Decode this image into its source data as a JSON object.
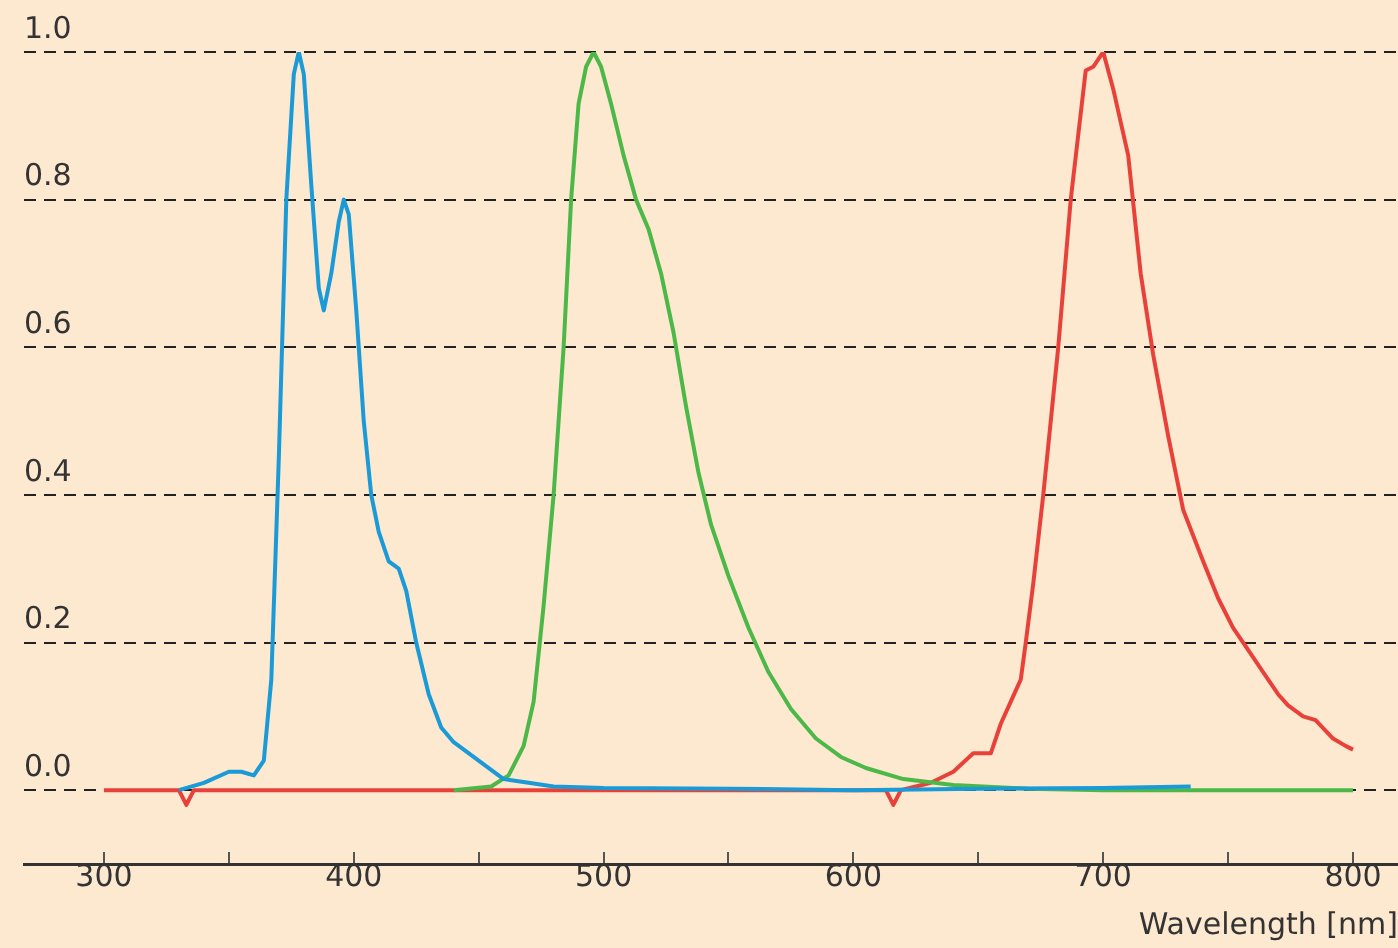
{
  "chart_data": {
    "type": "line",
    "xlabel": "Wavelength [nm]",
    "xlim": [
      268,
      818
    ],
    "xticks": [
      300,
      {
        "value": 350,
        "label": null
      },
      400,
      {
        "value": 450,
        "label": null
      },
      500,
      {
        "value": 550,
        "label": null
      },
      600,
      {
        "value": 650,
        "label": null
      },
      700,
      {
        "value": 750,
        "label": null
      },
      800
    ],
    "ylim": [
      -0.1,
      1.0
    ],
    "yticks": [
      {
        "value": 0,
        "label": "0.0"
      },
      0.2,
      0.4,
      0.6,
      0.8,
      {
        "value": 1,
        "label": "1.0"
      }
    ],
    "grid": "y",
    "legend": false,
    "marker": "none",
    "line_style": "solid",
    "series": [
      {
        "color": "#1a9ad6",
        "x": [
          330,
          340,
          350,
          355,
          360,
          364,
          367,
          370,
          373,
          376,
          378,
          380,
          383,
          386,
          388,
          391,
          394,
          396,
          398,
          401,
          404,
          407,
          410,
          414,
          418,
          421,
          425,
          430,
          435,
          440,
          450,
          460,
          470,
          480,
          500,
          550,
          600,
          650,
          700,
          735
        ],
        "values": [
          0,
          0.01,
          0.025,
          0.025,
          0.02,
          0.04,
          0.15,
          0.45,
          0.8,
          0.97,
          1.0,
          0.97,
          0.82,
          0.68,
          0.65,
          0.7,
          0.77,
          0.8,
          0.78,
          0.65,
          0.5,
          0.4,
          0.35,
          0.31,
          0.3,
          0.27,
          0.2,
          0.13,
          0.085,
          0.065,
          0.04,
          0.015,
          0.01,
          0.005,
          0.003,
          0.002,
          0,
          0.002,
          0.003,
          0.005
        ]
      },
      {
        "color": "#4cb848",
        "x": [
          440,
          455,
          462,
          468,
          472,
          476,
          480,
          484,
          487,
          490,
          493,
          496,
          499,
          503,
          508,
          513,
          518,
          523,
          528,
          533,
          538,
          543,
          550,
          558,
          566,
          575,
          585,
          595,
          605,
          620,
          640,
          670,
          700,
          800
        ],
        "values": [
          0,
          0.005,
          0.02,
          0.06,
          0.12,
          0.25,
          0.4,
          0.6,
          0.8,
          0.93,
          0.98,
          1.0,
          0.98,
          0.93,
          0.86,
          0.8,
          0.76,
          0.7,
          0.62,
          0.52,
          0.43,
          0.36,
          0.29,
          0.22,
          0.16,
          0.11,
          0.07,
          0.045,
          0.03,
          0.015,
          0.007,
          0.002,
          0,
          0
        ]
      },
      {
        "color": "#e8413a",
        "x": [
          300,
          330,
          333,
          336,
          400,
          500,
          600,
          613,
          616,
          619,
          625,
          631,
          640,
          648,
          655,
          659,
          663,
          667,
          669,
          672,
          676,
          682,
          687,
          693,
          696,
          700,
          704,
          710,
          715,
          720,
          726,
          732,
          740,
          746,
          752,
          758,
          764,
          770,
          774,
          780,
          785,
          792,
          797,
          800
        ],
        "values": [
          0,
          0,
          -0.02,
          0,
          0,
          0,
          0,
          0,
          -0.02,
          0,
          0.005,
          0.01,
          0.025,
          0.05,
          0.05,
          0.09,
          0.12,
          0.15,
          0.2,
          0.28,
          0.4,
          0.6,
          0.8,
          0.975,
          0.98,
          1.0,
          0.95,
          0.86,
          0.7,
          0.59,
          0.48,
          0.38,
          0.31,
          0.26,
          0.22,
          0.19,
          0.16,
          0.13,
          0.115,
          0.1,
          0.095,
          0.07,
          0.06,
          0.055
        ]
      }
    ]
  }
}
